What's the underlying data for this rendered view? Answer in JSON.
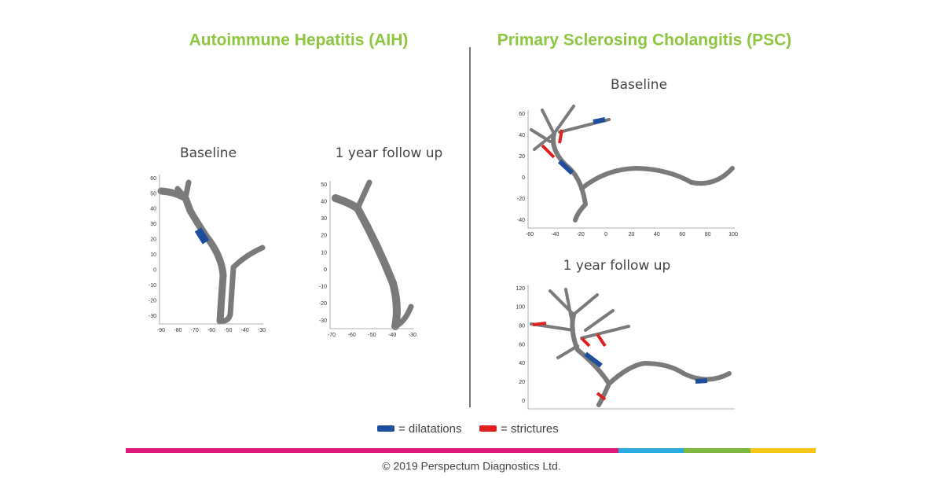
{
  "header": {
    "left_title": "Autoimmune Hepatitis (AIH)",
    "right_title": "Primary Sclerosing Cholangitis (PSC)"
  },
  "panels": [
    {
      "label": "Baseline",
      "yticks": [
        "60",
        "50",
        "40",
        "30",
        "20",
        "10",
        "0",
        "-10",
        "-20",
        "-30"
      ],
      "xticks": [
        "-90",
        "-80",
        "-70",
        "-60",
        "-50",
        "-40",
        "-30"
      ]
    },
    {
      "label": "1 year follow up",
      "yticks": [
        "50",
        "40",
        "30",
        "20",
        "10",
        "0",
        "-10",
        "-20",
        "-30"
      ],
      "xticks": [
        "-70",
        "-60",
        "-50",
        "-40",
        "-30"
      ]
    },
    {
      "label": "Baseline",
      "yticks": [
        "60",
        "40",
        "20",
        "0",
        "-20",
        "-40"
      ],
      "xticks": [
        "-60",
        "-40",
        "-20",
        "0",
        "20",
        "40",
        "60",
        "80",
        "100"
      ]
    },
    {
      "label": "1 year follow up",
      "yticks": [
        "120",
        "100",
        "80",
        "60",
        "40",
        "20",
        "0"
      ],
      "xticks": []
    }
  ],
  "legend": [
    {
      "label": "= dilatations",
      "color": "#1f4e9c"
    },
    {
      "label": "= strictures",
      "color": "#e02020"
    }
  ],
  "footer": "© 2019 Perspectum Diagnostics Ltd."
}
